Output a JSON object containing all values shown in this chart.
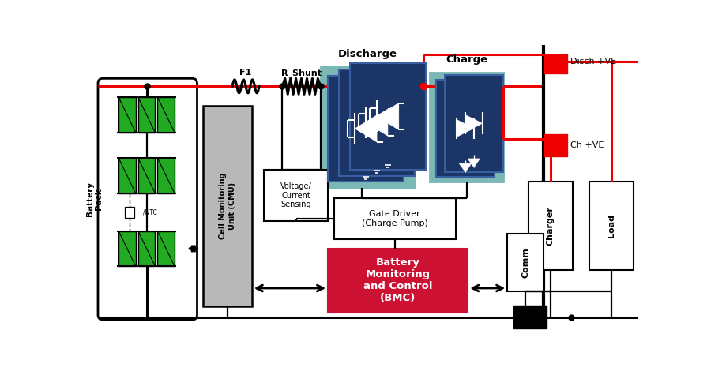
{
  "bg": "#ffffff",
  "red": "#ee0000",
  "black": "#000000",
  "dark_blue": "#1a3566",
  "teal": "#7ab8b5",
  "gray": "#b8b8b8",
  "crimson": "#cc1133",
  "green": "#22aa22",
  "white": "#ffffff",
  "line_blue": "#3a5fa0",
  "discharge_label": "Discharge",
  "charge_label": "Charge",
  "battery_pack_label": "Battery\nPack",
  "cmu_label": "Cell Monitoring\nUnit (CMU)",
  "voltage_sensing_label": "Voltage/\nCurrent\nSensing",
  "gate_driver_label": "Gate Driver\n(Charge Pump)",
  "bmc_label": "Battery\nMonitoring\nand Control\n(BMC)",
  "comm_label": "Comm",
  "charger_label": "Charger",
  "load_label": "Load",
  "disch_ve_label": "Disch +VE",
  "ch_ve_label": "Ch +VE",
  "f1_label": "F1",
  "rshunt_label": "R_Shunt",
  "ntc_label": "/NTC"
}
